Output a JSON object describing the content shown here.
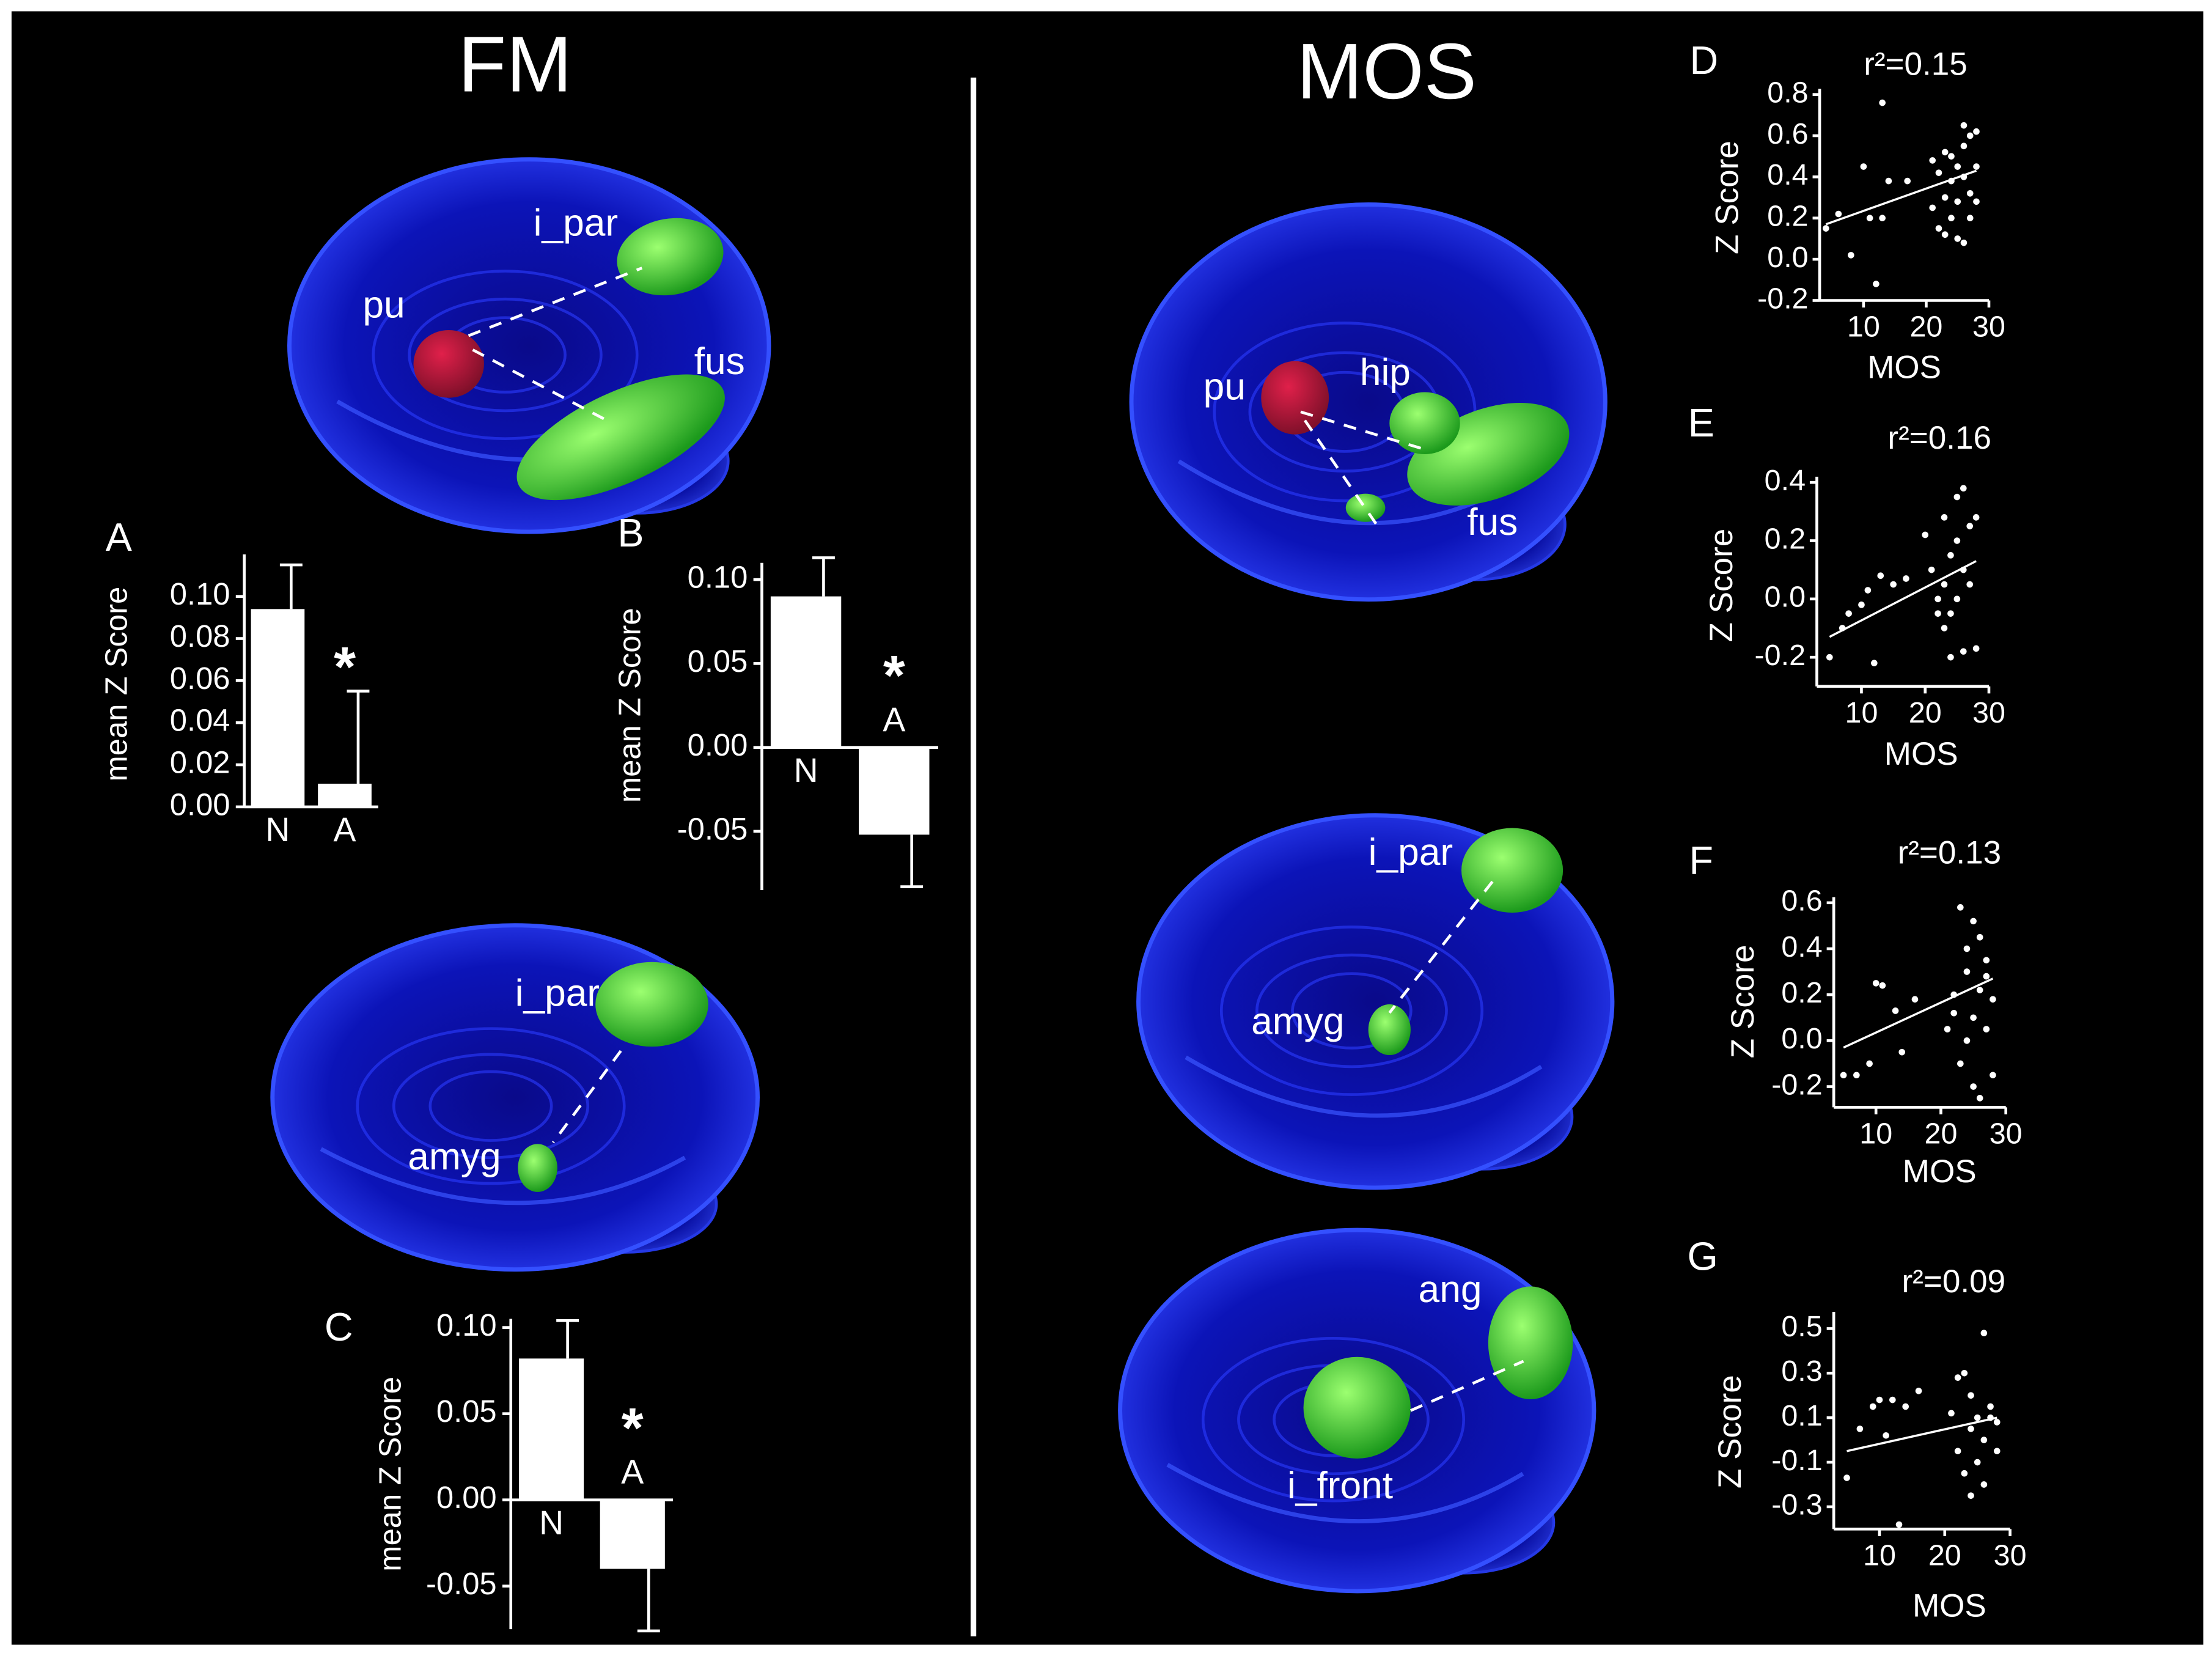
{
  "headings": [
    "FM",
    "MOS"
  ],
  "brain_labels": [
    "i_par",
    "pu",
    "fus",
    "i_par",
    "amyg",
    "pu",
    "hip",
    "fus",
    "i_par",
    "amyg",
    "ang",
    "i_front"
  ],
  "chart_data": [
    {
      "type": "bar",
      "panel": "A",
      "ylabel": "mean Z Score",
      "categories": [
        "N",
        "A"
      ],
      "values": [
        0.094,
        0.011
      ],
      "errors": [
        0.021,
        0.044
      ],
      "annotation": "*",
      "color": "#ffffff",
      "ylim": [
        0,
        0.12
      ],
      "yticks": [
        {
          "value": 0,
          "label": "0.00"
        },
        0.02,
        0.04,
        0.06,
        0.08,
        {
          "value": 0.1,
          "label": "0.10"
        }
      ]
    },
    {
      "type": "bar",
      "panel": "B",
      "ylabel": "mean Z Score",
      "categories": [
        "N",
        "A"
      ],
      "values": [
        0.09,
        -0.052
      ],
      "errors": [
        0.023,
        0.031
      ],
      "annotation": "*",
      "color": "#ffffff",
      "ylim": [
        -0.085,
        0.11
      ],
      "yticks": [
        -0.05,
        {
          "value": 0,
          "label": "0.00"
        },
        0.05,
        {
          "value": 0.1,
          "label": "0.10"
        }
      ]
    },
    {
      "type": "bar",
      "panel": "C",
      "ylabel": "mean Z Score",
      "categories": [
        "N",
        "A"
      ],
      "values": [
        0.082,
        -0.04
      ],
      "errors": [
        0.022,
        0.036
      ],
      "annotation": "*",
      "color": "#ffffff",
      "ylim": [
        -0.075,
        0.105
      ],
      "yticks": [
        -0.05,
        {
          "value": 0,
          "label": "0.00"
        },
        0.05,
        {
          "value": 0.1,
          "label": "0.10"
        }
      ]
    },
    {
      "type": "scatter",
      "panel": "D",
      "title": "r²=0.15",
      "xlabel": "MOS",
      "ylabel": "Z Score",
      "color": "#ffffff",
      "x": [
        4,
        6,
        8,
        10,
        11,
        12,
        13,
        13,
        14,
        17,
        21,
        21,
        22,
        22,
        23,
        23,
        23,
        24,
        24,
        24,
        25,
        25,
        25,
        26,
        26,
        26,
        26,
        27,
        27,
        27,
        28,
        28,
        28
      ],
      "values": [
        0.15,
        0.22,
        0.02,
        0.45,
        0.2,
        -0.12,
        0.76,
        0.2,
        0.38,
        0.38,
        0.48,
        0.25,
        0.15,
        0.42,
        0.52,
        0.3,
        0.12,
        0.38,
        0.2,
        0.5,
        0.1,
        0.45,
        0.28,
        0.65,
        0.4,
        0.08,
        0.55,
        0.32,
        0.6,
        0.2,
        0.45,
        0.62,
        0.28
      ],
      "fit": {
        "x": [
          4,
          28
        ],
        "values": [
          0.17,
          0.43
        ]
      },
      "xlim": [
        3,
        30
      ],
      "xticks": [
        10,
        20,
        30
      ],
      "ylim": [
        -0.2,
        0.8
      ],
      "yticks": [
        -0.2,
        {
          "value": 0,
          "label": "0.0"
        },
        0.2,
        0.4,
        0.6,
        0.8
      ]
    },
    {
      "type": "scatter",
      "panel": "E",
      "title": "r²=0.16",
      "xlabel": "MOS",
      "ylabel": "Z Score",
      "color": "#ffffff",
      "x": [
        5,
        7,
        8,
        10,
        11,
        12,
        13,
        15,
        17,
        20,
        21,
        22,
        22,
        23,
        23,
        23,
        24,
        24,
        24,
        25,
        25,
        25,
        26,
        26,
        26,
        27,
        27,
        28,
        28
      ],
      "values": [
        -0.2,
        -0.1,
        -0.05,
        -0.02,
        0.03,
        -0.22,
        0.08,
        0.05,
        0.07,
        0.22,
        0.1,
        0,
        -0.05,
        0.05,
        0.28,
        -0.1,
        0.15,
        -0.05,
        -0.2,
        0.35,
        0.2,
        0,
        0.1,
        0.38,
        -0.18,
        0.25,
        0.05,
        0.28,
        -0.17
      ],
      "fit": {
        "x": [
          5,
          28
        ],
        "values": [
          -0.13,
          0.13
        ]
      },
      "xlim": [
        3,
        30
      ],
      "xticks": [
        10,
        20,
        30
      ],
      "ylim": [
        -0.3,
        0.4
      ],
      "yticks": [
        -0.2,
        {
          "value": 0,
          "label": "0.0"
        },
        0.2,
        0.4
      ]
    },
    {
      "type": "scatter",
      "panel": "F",
      "title": "r²=0.13",
      "xlabel": "MOS",
      "ylabel": "Z Score",
      "color": "#ffffff",
      "x": [
        5,
        7,
        9,
        10,
        11,
        13,
        14,
        16,
        21,
        22,
        22,
        23,
        23,
        24,
        24,
        24,
        25,
        25,
        25,
        26,
        26,
        26,
        27,
        27,
        27,
        28,
        28
      ],
      "values": [
        -0.15,
        -0.15,
        -0.1,
        0.25,
        0.24,
        0.13,
        -0.05,
        0.18,
        0.05,
        0.2,
        0.12,
        0.58,
        -0.1,
        0.4,
        0,
        0.3,
        0.52,
        0.1,
        -0.2,
        0.45,
        0.22,
        -0.25,
        0.35,
        0.05,
        0.28,
        -0.15,
        0.18
      ],
      "fit": {
        "x": [
          5,
          28
        ],
        "values": [
          -0.03,
          0.27
        ]
      },
      "xlim": [
        3.5,
        30
      ],
      "xticks": [
        10,
        20,
        30
      ],
      "ylim": [
        -0.29,
        0.6
      ],
      "yticks": [
        -0.2,
        {
          "value": 0,
          "label": "0.0"
        },
        0.2,
        0.4,
        0.6
      ]
    },
    {
      "type": "scatter",
      "panel": "G",
      "title": "r²=0.09",
      "xlabel": "MOS",
      "ylabel": "Z Score",
      "color": "#ffffff",
      "x": [
        5,
        7,
        9,
        10,
        11,
        12,
        13,
        14,
        16,
        21,
        22,
        22,
        23,
        23,
        24,
        24,
        24,
        25,
        25,
        26,
        26,
        26,
        27,
        27,
        28,
        28
      ],
      "values": [
        -0.17,
        0.05,
        0.15,
        0.18,
        0.02,
        0.18,
        -0.38,
        0.15,
        0.22,
        0.12,
        0.28,
        -0.05,
        0.3,
        -0.15,
        0.05,
        0.2,
        -0.25,
        0.1,
        -0.1,
        0.48,
        0,
        -0.2,
        0.15,
        0.1,
        0.08,
        -0.05
      ],
      "fit": {
        "x": [
          5,
          28
        ],
        "values": [
          -0.05,
          0.1
        ]
      },
      "xlim": [
        3,
        30
      ],
      "xticks": [
        10,
        20,
        30
      ],
      "ylim": [
        -0.4,
        0.55
      ],
      "yticks": [
        -0.3,
        -0.1,
        0.1,
        0.3,
        0.5
      ]
    }
  ]
}
